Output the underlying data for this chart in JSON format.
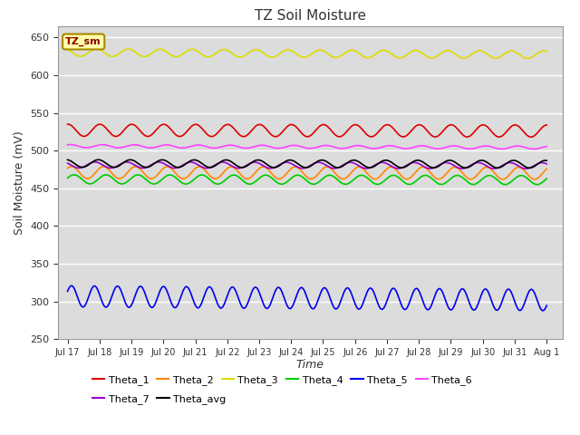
{
  "title": "TZ Soil Moisture",
  "xlabel": "Time",
  "ylabel": "Soil Moisture (mV)",
  "ylim": [
    250,
    665
  ],
  "background_color": "#dcdcdc",
  "series_order": [
    "Theta_1",
    "Theta_2",
    "Theta_3",
    "Theta_4",
    "Theta_5",
    "Theta_6",
    "Theta_7",
    "Theta_avg"
  ],
  "series": {
    "Theta_1": {
      "color": "#dd0000",
      "base": 527,
      "amp": 8,
      "period": 1.0,
      "phase": 1.5,
      "trend": -1.0
    },
    "Theta_2": {
      "color": "#ff8800",
      "base": 471,
      "amp": 8,
      "period": 1.0,
      "phase": 0.8,
      "trend": -1.0
    },
    "Theta_3": {
      "color": "#dddd00",
      "base": 630,
      "amp": 5,
      "period": 1.0,
      "phase": 2.2,
      "trend": -3.0
    },
    "Theta_4": {
      "color": "#00cc00",
      "base": 462,
      "amp": 6,
      "period": 1.0,
      "phase": 0.3,
      "trend": -1.0
    },
    "Theta_5": {
      "color": "#0000ee",
      "base": 307,
      "amp": 14,
      "period": 0.72,
      "phase": 0.5,
      "trend": -5.0
    },
    "Theta_6": {
      "color": "#ff44ff",
      "base": 506,
      "amp": 2,
      "period": 1.0,
      "phase": 1.0,
      "trend": -2.0
    },
    "Theta_7": {
      "color": "#9900cc",
      "base": 481,
      "amp": 4,
      "period": 1.0,
      "phase": 2.5,
      "trend": -1.0
    },
    "Theta_avg": {
      "color": "#000000",
      "base": 483,
      "amp": 5,
      "period": 1.0,
      "phase": 1.8,
      "trend": -1.0
    }
  },
  "tick_labels": [
    "Jul 17",
    "Jul 18",
    "Jul 19",
    "Jul 20",
    "Jul 21",
    "Jul 22",
    "Jul 23",
    "Jul 24",
    "Jul 25",
    "Jul 26",
    "Jul 27",
    "Jul 28",
    "Jul 29",
    "Jul 30",
    "Jul 31",
    "Aug 1"
  ],
  "yticks": [
    250,
    300,
    350,
    400,
    450,
    500,
    550,
    600,
    650
  ],
  "legend_label": "TZ_sm",
  "legend_box_facecolor": "#ffffaa",
  "legend_box_edgecolor": "#aa8800",
  "legend_text_color": "#880000"
}
